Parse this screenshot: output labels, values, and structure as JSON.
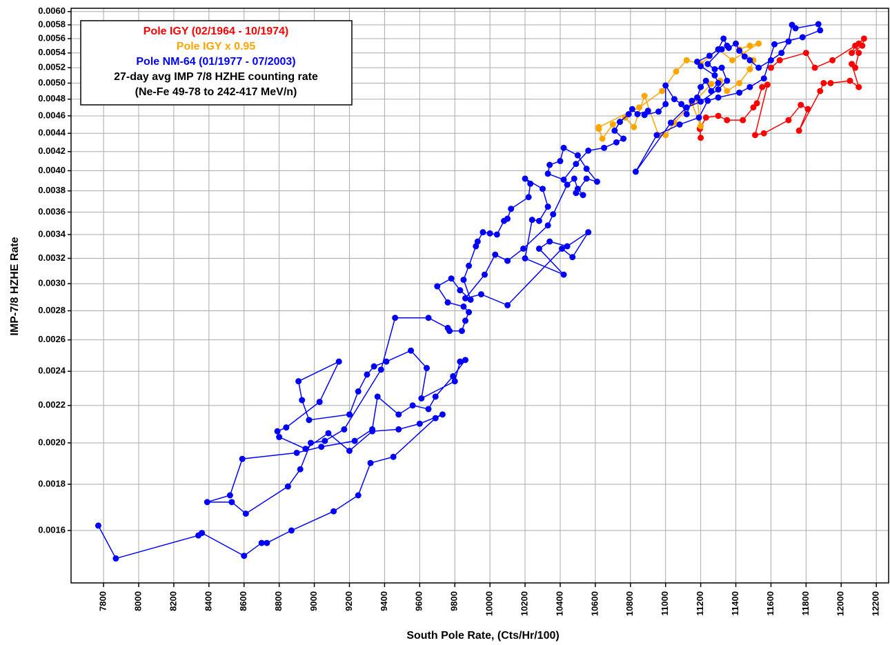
{
  "chart_data": {
    "type": "line",
    "xlabel": "South Pole Rate, (Cts/Hr/100)",
    "ylabel": "IMP-7/8 HZHE Rate",
    "xlim": [
      7615,
      12270
    ],
    "ylim": [
      0.0014,
      0.00605
    ],
    "ylog": true,
    "grid": true,
    "legend": "upper left",
    "annotations": [
      "27-day avg IMP 7/8 HZHE counting rate",
      "(Ne-Fe 49-78 to 242-417 MeV/n)"
    ],
    "xticks": [
      7800,
      8000,
      8200,
      8400,
      8600,
      8800,
      9000,
      9200,
      9400,
      9600,
      9800,
      10000,
      10200,
      10400,
      10600,
      10800,
      11000,
      11200,
      11400,
      11600,
      11800,
      12000,
      12200
    ],
    "yticks": [
      {
        "value": 0.0016,
        "label": "0.0016"
      },
      {
        "value": 0.0018,
        "label": "0.0018"
      },
      {
        "value": 0.002,
        "label": "0.0020"
      },
      {
        "value": 0.0022,
        "label": "0.0022"
      },
      {
        "value": 0.0024,
        "label": "0.0024"
      },
      {
        "value": 0.0026,
        "label": "0.0026"
      },
      {
        "value": 0.0028,
        "label": "0.0028"
      },
      {
        "value": 0.003,
        "label": "0.0030"
      },
      {
        "value": 0.0032,
        "label": "0.0032"
      },
      {
        "value": 0.0034,
        "label": "0.0034"
      },
      {
        "value": 0.0036,
        "label": "0.0036"
      },
      {
        "value": 0.0038,
        "label": "0.0038"
      },
      {
        "value": 0.004,
        "label": "0.0040"
      },
      {
        "value": 0.0042,
        "label": "0.0042"
      },
      {
        "value": 0.0044,
        "label": "0.0044"
      },
      {
        "value": 0.0046,
        "label": "0.0046"
      },
      {
        "value": 0.0048,
        "label": "0.0048"
      },
      {
        "value": 0.005,
        "label": "0.0050"
      },
      {
        "value": 0.0052,
        "label": "0.0052"
      },
      {
        "value": 0.0054,
        "label": "0.0054"
      },
      {
        "value": 0.0056,
        "label": "0.0056"
      },
      {
        "value": 0.0058,
        "label": "0.0058"
      },
      {
        "value": 0.006,
        "label": "0.0060"
      }
    ],
    "series": [
      {
        "name": "Pole IGY (02/1964 - 10/1974)",
        "color": "#ff0000",
        "x": [
          11200,
          11195,
          11230,
          11300,
          11350,
          11440,
          11500,
          11520,
          11550,
          11580,
          11510,
          11560,
          11700,
          11770,
          11810,
          11760,
          11880,
          11900,
          11940,
          12050,
          12100,
          12060,
          12080,
          12100,
          12080,
          12060,
          12120,
          12130,
          12100,
          11950,
          11850,
          11800,
          11650,
          11600
        ],
        "values": [
          0.00435,
          0.00445,
          0.00458,
          0.0046,
          0.00455,
          0.00455,
          0.0047,
          0.00475,
          0.00495,
          0.00498,
          0.00438,
          0.0044,
          0.00455,
          0.00473,
          0.00468,
          0.00443,
          0.0049,
          0.005,
          0.005,
          0.00503,
          0.00495,
          0.00525,
          0.0052,
          0.0054,
          0.0055,
          0.0054,
          0.0055,
          0.0056,
          0.00553,
          0.0053,
          0.0052,
          0.0054,
          0.0053,
          0.0052
        ]
      },
      {
        "name": "Pole IGY x 0.95",
        "color": "#ffa500",
        "x": [
          10620,
          10640,
          10700,
          10770,
          10820,
          10880,
          10960,
          11000,
          11050,
          11150,
          11200,
          11180,
          11260,
          11310,
          11350,
          11420,
          11480,
          11500,
          11420,
          11480,
          11530,
          11380,
          11300,
          11200,
          11120,
          11060,
          10980,
          10850,
          10620
        ],
        "values": [
          0.00445,
          0.00434,
          0.0045,
          0.00458,
          0.00447,
          0.00484,
          0.00438,
          0.00438,
          0.00452,
          0.00475,
          0.00448,
          0.0048,
          0.00499,
          0.00503,
          0.0049,
          0.005,
          0.00518,
          0.0053,
          0.00545,
          0.0055,
          0.00553,
          0.0053,
          0.00545,
          0.00525,
          0.0053,
          0.00515,
          0.0049,
          0.0047,
          0.00447
        ]
      },
      {
        "name": "Pole NM-64 (01/1977 - 07/2003)",
        "color": "#0000ff",
        "x": [
          7770,
          7870,
          8340,
          8360,
          8600,
          8700,
          8730,
          8870,
          9110,
          9250,
          9320,
          9450,
          9690,
          9730,
          9600,
          9480,
          9330,
          9200,
          9080,
          8950,
          8800,
          8790,
          8840,
          9030,
          9140,
          8910,
          8930,
          8970,
          9200,
          9250,
          9300,
          9340,
          9410,
          9550,
          9640,
          9610,
          9800,
          9830,
          9860,
          9790,
          9690,
          9650,
          9560,
          9480,
          9360,
          9330,
          9230,
          9040,
          8900,
          8590,
          8520,
          8390,
          8530,
          8610,
          8850,
          8920,
          8980,
          9060,
          9170,
          9380,
          9460,
          9650,
          9760,
          9770,
          9840,
          9860,
          9880,
          9850,
          9760,
          9700,
          9780,
          9830,
          9890,
          9850,
          9880,
          9920,
          9930,
          9960,
          10000,
          10040,
          10080,
          10100,
          10120,
          10220,
          10230,
          10200,
          10300,
          10330,
          10280,
          10240,
          10200,
          10420,
          10280,
          10340,
          10440,
          10560,
          10470,
          10410,
          10100,
          9950,
          9860,
          9970,
          10030,
          10100,
          10190,
          10330,
          10360,
          10440,
          10480,
          10500,
          10530,
          10490,
          10550,
          10610,
          10550,
          10500,
          10420,
          10400,
          10340,
          10330,
          10420,
          10490,
          10560,
          10650,
          10720,
          10760,
          10710,
          10740,
          10790,
          10810,
          10840,
          10900,
          10880,
          10960,
          11000,
          11000,
          11050,
          11090,
          11120,
          11150,
          11180,
          11200,
          11230,
          11260,
          11300,
          11280,
          11200,
          11180,
          11250,
          11300,
          11330,
          11350,
          11360,
          11400,
          11420,
          11450,
          11480,
          11530,
          11600,
          11660,
          11700,
          11720,
          11740,
          11870,
          11880,
          11780,
          11620,
          11560,
          11480,
          11420,
          11300,
          11240,
          11190,
          11080,
          10950,
          10830,
          11030,
          11120,
          11200,
          11300,
          11350,
          11320,
          11280,
          11240,
          11320
        ],
        "values": [
          0.00162,
          0.00149,
          0.00158,
          0.00159,
          0.0015,
          0.00155,
          0.00155,
          0.0016,
          0.00168,
          0.00175,
          0.0019,
          0.00193,
          0.00213,
          0.00215,
          0.0021,
          0.00207,
          0.00206,
          0.00196,
          0.00205,
          0.00197,
          0.00203,
          0.00206,
          0.00208,
          0.00222,
          0.00246,
          0.00234,
          0.00223,
          0.00212,
          0.00215,
          0.00228,
          0.00238,
          0.00243,
          0.00246,
          0.00253,
          0.00242,
          0.00224,
          0.00234,
          0.00246,
          0.00247,
          0.00237,
          0.00225,
          0.00218,
          0.0022,
          0.00215,
          0.00225,
          0.00207,
          0.00201,
          0.00198,
          0.00195,
          0.00192,
          0.00175,
          0.00172,
          0.00172,
          0.00167,
          0.00179,
          0.00187,
          0.002,
          0.00201,
          0.00207,
          0.00241,
          0.00275,
          0.00275,
          0.00268,
          0.00266,
          0.00266,
          0.00273,
          0.00279,
          0.00283,
          0.00286,
          0.00298,
          0.00304,
          0.00295,
          0.00288,
          0.00303,
          0.00314,
          0.0033,
          0.00334,
          0.00342,
          0.00341,
          0.0034,
          0.00352,
          0.00354,
          0.00363,
          0.00374,
          0.00387,
          0.00392,
          0.00382,
          0.00365,
          0.00352,
          0.00353,
          0.0032,
          0.00307,
          0.00328,
          0.00334,
          0.0033,
          0.00342,
          0.00321,
          0.00328,
          0.00284,
          0.00292,
          0.00289,
          0.00307,
          0.00323,
          0.00318,
          0.00328,
          0.00348,
          0.00358,
          0.00386,
          0.00392,
          0.00382,
          0.00376,
          0.00378,
          0.00392,
          0.00389,
          0.00402,
          0.00416,
          0.00424,
          0.0041,
          0.00406,
          0.00397,
          0.00391,
          0.00407,
          0.00421,
          0.00424,
          0.0043,
          0.00434,
          0.00443,
          0.00453,
          0.00462,
          0.00468,
          0.00462,
          0.00466,
          0.00461,
          0.00465,
          0.00474,
          0.00497,
          0.0048,
          0.00474,
          0.00462,
          0.00478,
          0.00482,
          0.00495,
          0.00503,
          0.0049,
          0.005,
          0.0051,
          0.00522,
          0.00528,
          0.00536,
          0.00545,
          0.0056,
          0.0055,
          0.00547,
          0.00553,
          0.00543,
          0.00535,
          0.0053,
          0.0052,
          0.0053,
          0.0054,
          0.00556,
          0.0058,
          0.00575,
          0.00581,
          0.00572,
          0.00562,
          0.00552,
          0.00506,
          0.00495,
          0.00488,
          0.00482,
          0.00478,
          0.00458,
          0.0045,
          0.00438,
          0.00399,
          0.00452,
          0.0047,
          0.00477,
          0.00492,
          0.00503,
          0.0052,
          0.00518,
          0.00525,
          0.00545
        ]
      }
    ]
  }
}
